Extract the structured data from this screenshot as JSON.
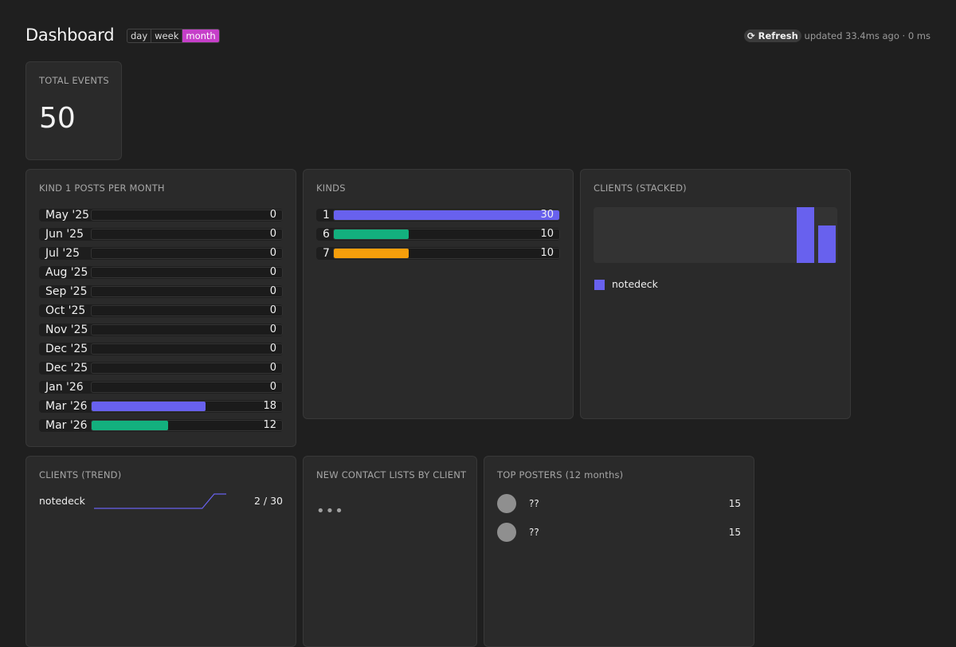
{
  "header": {
    "title": "Dashboard",
    "ranges": [
      "day",
      "week",
      "month"
    ],
    "active_range": "month",
    "refresh_icon": "refresh-icon",
    "refresh_label": "⟳ Refresh",
    "updated_text": "updated 33.4ms ago · 0 ms"
  },
  "total_events": {
    "title": "TOTAL EVENTS",
    "value": "50"
  },
  "posts_per_month": {
    "title": "KIND 1 POSTS PER MONTH",
    "max": 30,
    "rows": [
      {
        "label": "May '25",
        "value": 0,
        "color": "#6861ee"
      },
      {
        "label": "Jun '25",
        "value": 0,
        "color": "#6861ee"
      },
      {
        "label": "Jul '25",
        "value": 0,
        "color": "#6861ee"
      },
      {
        "label": "Aug '25",
        "value": 0,
        "color": "#6861ee"
      },
      {
        "label": "Sep '25",
        "value": 0,
        "color": "#6861ee"
      },
      {
        "label": "Oct '25",
        "value": 0,
        "color": "#6861ee"
      },
      {
        "label": "Nov '25",
        "value": 0,
        "color": "#6861ee"
      },
      {
        "label": "Dec '25",
        "value": 0,
        "color": "#6861ee"
      },
      {
        "label": "Dec '25",
        "value": 0,
        "color": "#6861ee"
      },
      {
        "label": "Jan '26",
        "value": 0,
        "color": "#6861ee"
      },
      {
        "label": "Mar '26",
        "value": 18,
        "color": "#6861ee"
      },
      {
        "label": "Mar '26",
        "value": 12,
        "color": "#13b07e"
      }
    ]
  },
  "kinds": {
    "title": "KINDS",
    "max": 30,
    "rows": [
      {
        "label": "1",
        "value": 30,
        "color": "#6861ee"
      },
      {
        "label": "6",
        "value": 10,
        "color": "#13b07e"
      },
      {
        "label": "7",
        "value": 10,
        "color": "#f59e0b"
      }
    ]
  },
  "clients_stacked": {
    "title": "CLIENTS (STACKED)",
    "bars": [
      1.0,
      0.67
    ],
    "legend": [
      {
        "name": "notedeck",
        "color": "#6861ee"
      }
    ]
  },
  "clients_trend": {
    "title": "CLIENTS (TREND)",
    "client": "notedeck",
    "series": [
      0,
      0,
      0,
      0,
      0,
      0,
      0,
      0,
      0,
      0,
      1,
      1
    ],
    "value_text": "2 / 30",
    "color": "#6861ee"
  },
  "contact_lists": {
    "title": "NEW CONTACT LISTS BY CLIENT",
    "placeholder": "•••"
  },
  "top_posters": {
    "title": "TOP POSTERS (12 months)",
    "rows": [
      {
        "name": "??",
        "count": "15"
      },
      {
        "name": "??",
        "count": "15"
      }
    ]
  }
}
